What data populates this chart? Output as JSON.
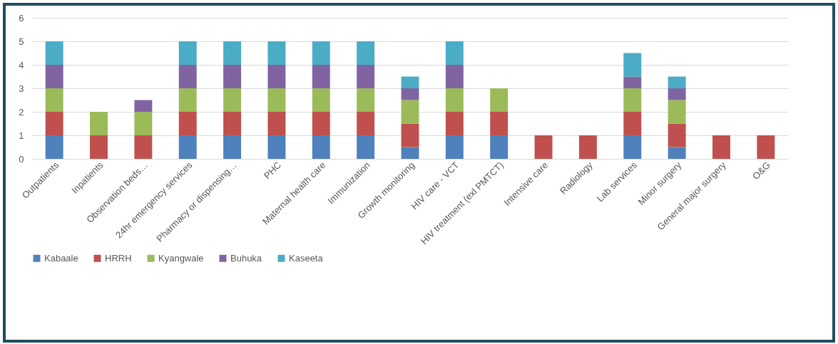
{
  "chart_data": {
    "type": "bar",
    "stacked": true,
    "categories": [
      "Outpatients",
      "Inpatients",
      "Observation beds…",
      "24hr emergency services",
      "Pharmacy or dispensing…",
      "PHC",
      "Maternal health care",
      "Immunization",
      "Growth monitoring",
      "HIV care - VCT",
      "HIV treatment (exl PMTCT)",
      "Intensive care",
      "Radiology",
      "Lab services",
      "Minor surgery",
      "General major surgery",
      "O&G"
    ],
    "series": [
      {
        "name": "Kabaale",
        "color": "#4f81bd",
        "values": [
          1,
          0,
          0,
          1,
          1,
          1,
          1,
          1,
          0.5,
          1,
          1,
          0,
          0,
          1,
          0.5,
          0,
          0
        ]
      },
      {
        "name": "HRRH",
        "color": "#c0504d",
        "values": [
          1,
          1,
          1,
          1,
          1,
          1,
          1,
          1,
          1,
          1,
          1,
          1,
          1,
          1,
          1,
          1,
          1
        ]
      },
      {
        "name": "Kyangwale",
        "color": "#9bbb59",
        "values": [
          1,
          1,
          1,
          1,
          1,
          1,
          1,
          1,
          1,
          1,
          1,
          0,
          0,
          1,
          1,
          0,
          0
        ]
      },
      {
        "name": "Buhuka",
        "color": "#8064a2",
        "values": [
          1,
          0,
          0.5,
          1,
          1,
          1,
          1,
          1,
          0.5,
          1,
          0,
          0,
          0,
          0.5,
          0.5,
          0,
          0
        ]
      },
      {
        "name": "Kaseeta",
        "color": "#4bacc6",
        "values": [
          1,
          0,
          0,
          1,
          1,
          1,
          1,
          1,
          0.5,
          1,
          0,
          0,
          0,
          1,
          0.5,
          0,
          0
        ]
      }
    ],
    "ylim": [
      0,
      6
    ],
    "yticks": [
      0,
      1,
      2,
      3,
      4,
      5,
      6
    ],
    "grid": "y",
    "legend": "bottom"
  }
}
